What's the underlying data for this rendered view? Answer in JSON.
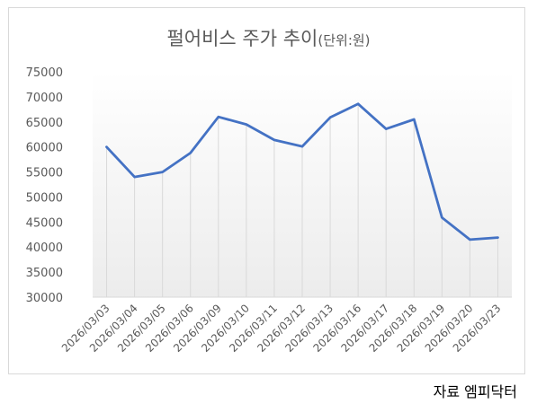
{
  "chart_data": {
    "type": "line",
    "title": "펄어비스 주가 추이",
    "title_unit": "(단위:원)",
    "categories": [
      "2026/03/03",
      "2026/03/04",
      "2026/03/05",
      "2026/03/06",
      "2026/03/09",
      "2026/03/10",
      "2026/03/11",
      "2026/03/12",
      "2026/03/13",
      "2026/03/16",
      "2026/03/17",
      "2026/03/18",
      "2026/03/19",
      "2026/03/20",
      "2026/03/23"
    ],
    "series": [
      {
        "values": [
          60000,
          54000,
          55000,
          58800,
          66000,
          64500,
          61400,
          60100,
          65900,
          68600,
          63600,
          65500,
          45900,
          41500,
          41900
        ],
        "color": "#4472c4"
      }
    ],
    "ylim": [
      30000,
      75000
    ],
    "yticks": [
      30000,
      35000,
      40000,
      45000,
      50000,
      55000,
      60000,
      65000,
      70000,
      75000
    ],
    "xlabel": "",
    "ylabel": "",
    "grid": "vertical drop lines",
    "legend": "none"
  },
  "source": "자료 엠피닥터"
}
